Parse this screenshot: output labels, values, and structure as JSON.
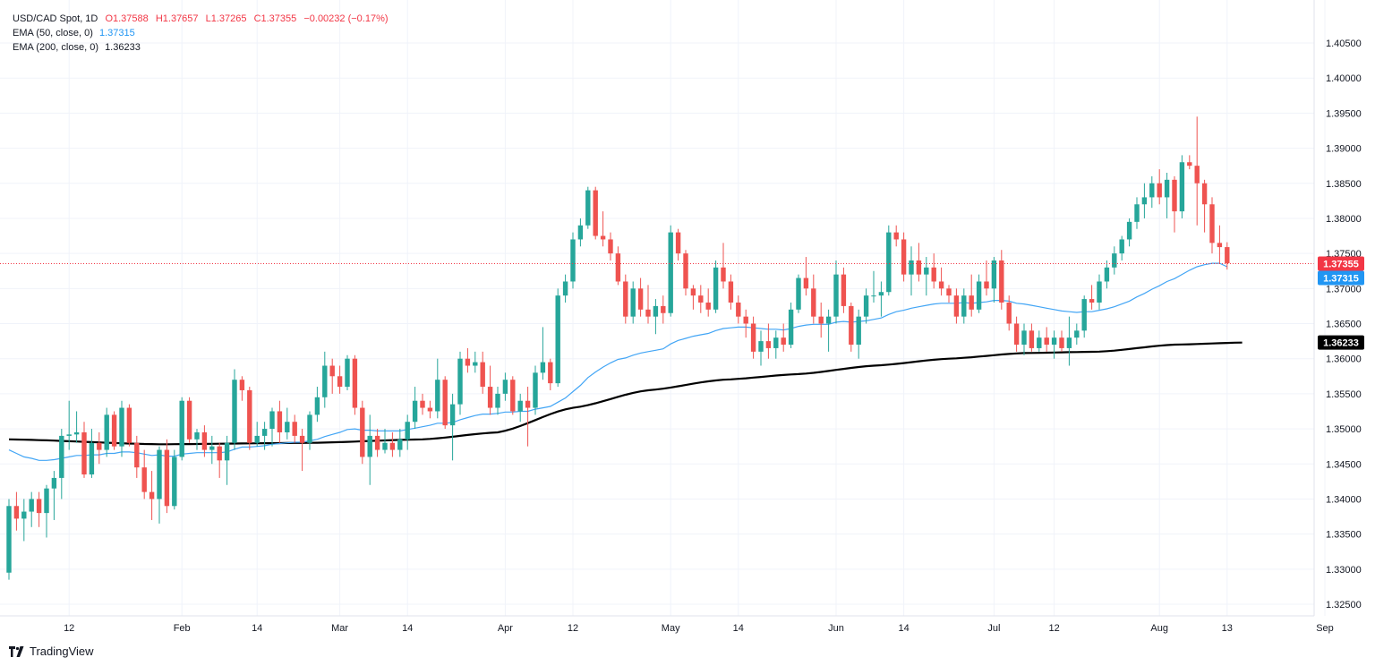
{
  "legend": {
    "symbol": "USD/CAD Spot, 1D",
    "open": "O1.37588",
    "high": "H1.37657",
    "low": "L1.37265",
    "close": "C1.37355",
    "change": "−0.00232 (−0.17%)",
    "ema50_label": "EMA (50, close, 0)",
    "ema50_value": "1.37315",
    "ema200_label": "EMA (200, close, 0)",
    "ema200_value": "1.36233"
  },
  "watermark": "TradingView",
  "colors": {
    "up": "#26a69a",
    "down": "#ef5350",
    "ema50": "#42a5f5",
    "ema200": "#000000",
    "last_price_tag": "#f23645",
    "ema50_tag": "#2196f3",
    "ema200_tag": "#000000",
    "grid": "#f0f3fa"
  },
  "chart_data": {
    "type": "candlestick",
    "title": "USD/CAD Spot, 1D",
    "x_axis": {
      "ticks": [
        {
          "label": "12",
          "day": 8
        },
        {
          "label": "Feb",
          "day": 23
        },
        {
          "label": "14",
          "day": 33
        },
        {
          "label": "Mar",
          "day": 44
        },
        {
          "label": "14",
          "day": 53
        },
        {
          "label": "Apr",
          "day": 66
        },
        {
          "label": "12",
          "day": 75
        },
        {
          "label": "May",
          "day": 88
        },
        {
          "label": "14",
          "day": 97
        },
        {
          "label": "Jun",
          "day": 110
        },
        {
          "label": "14",
          "day": 119
        },
        {
          "label": "Jul",
          "day": 131
        },
        {
          "label": "12",
          "day": 139
        },
        {
          "label": "Aug",
          "day": 153
        },
        {
          "label": "13",
          "day": 162
        },
        {
          "label": "Sep",
          "day": 175
        }
      ]
    },
    "y_axis": {
      "range": [
        1.322,
        1.409
      ],
      "ticks": [
        "1.40500",
        "1.40000",
        "1.39500",
        "1.39000",
        "1.38500",
        "1.38000",
        "1.37500",
        "1.37000",
        "1.36500",
        "1.36000",
        "1.35500",
        "1.35000",
        "1.34500",
        "1.34000",
        "1.33500",
        "1.33000",
        "1.32500"
      ]
    },
    "price_tags": {
      "last": "1.37355",
      "ema50": "1.37315",
      "ema200": "1.36233"
    },
    "last_price": 1.37355,
    "grid": true,
    "candles": [
      [
        1.3295,
        1.34,
        1.3285,
        1.339
      ],
      [
        1.339,
        1.341,
        1.3355,
        1.3372
      ],
      [
        1.3372,
        1.34,
        1.334,
        1.3382
      ],
      [
        1.3382,
        1.341,
        1.336,
        1.34
      ],
      [
        1.34,
        1.341,
        1.336,
        1.338
      ],
      [
        1.338,
        1.342,
        1.3345,
        1.3415
      ],
      [
        1.3415,
        1.344,
        1.337,
        1.343
      ],
      [
        1.343,
        1.35,
        1.34,
        1.349
      ],
      [
        1.349,
        1.354,
        1.347,
        1.3492
      ],
      [
        1.3492,
        1.3525,
        1.348,
        1.3495
      ],
      [
        1.3495,
        1.351,
        1.343,
        1.3435
      ],
      [
        1.3435,
        1.35,
        1.343,
        1.348
      ],
      [
        1.348,
        1.3495,
        1.345,
        1.347
      ],
      [
        1.347,
        1.353,
        1.346,
        1.352
      ],
      [
        1.352,
        1.3525,
        1.347,
        1.3475
      ],
      [
        1.3475,
        1.354,
        1.346,
        1.353
      ],
      [
        1.353,
        1.3535,
        1.3475,
        1.348
      ],
      [
        1.348,
        1.349,
        1.343,
        1.3445
      ],
      [
        1.3445,
        1.347,
        1.34,
        1.341
      ],
      [
        1.341,
        1.344,
        1.337,
        1.34
      ],
      [
        1.34,
        1.3475,
        1.3365,
        1.347
      ],
      [
        1.347,
        1.3485,
        1.338,
        1.339
      ],
      [
        1.339,
        1.347,
        1.3385,
        1.346
      ],
      [
        1.346,
        1.3545,
        1.3455,
        1.354
      ],
      [
        1.354,
        1.3545,
        1.348,
        1.3485
      ],
      [
        1.3485,
        1.35,
        1.347,
        1.3495
      ],
      [
        1.3495,
        1.3505,
        1.346,
        1.347
      ],
      [
        1.347,
        1.349,
        1.345,
        1.3475
      ],
      [
        1.3475,
        1.348,
        1.343,
        1.3455
      ],
      [
        1.3455,
        1.349,
        1.342,
        1.348
      ],
      [
        1.348,
        1.3585,
        1.347,
        1.357
      ],
      [
        1.357,
        1.3575,
        1.354,
        1.3555
      ],
      [
        1.3555,
        1.356,
        1.347,
        1.348
      ],
      [
        1.348,
        1.351,
        1.3475,
        1.349
      ],
      [
        1.349,
        1.351,
        1.347,
        1.35
      ],
      [
        1.35,
        1.353,
        1.3475,
        1.3525
      ],
      [
        1.3525,
        1.354,
        1.348,
        1.3495
      ],
      [
        1.3495,
        1.353,
        1.3485,
        1.351
      ],
      [
        1.351,
        1.352,
        1.348,
        1.349
      ],
      [
        1.349,
        1.35,
        1.344,
        1.348
      ],
      [
        1.348,
        1.3525,
        1.347,
        1.352
      ],
      [
        1.352,
        1.356,
        1.351,
        1.3545
      ],
      [
        1.3545,
        1.361,
        1.353,
        1.359
      ],
      [
        1.359,
        1.36,
        1.355,
        1.3575
      ],
      [
        1.3575,
        1.359,
        1.355,
        1.356
      ],
      [
        1.356,
        1.3605,
        1.3555,
        1.36
      ],
      [
        1.36,
        1.3605,
        1.352,
        1.353
      ],
      [
        1.353,
        1.354,
        1.345,
        1.346
      ],
      [
        1.346,
        1.352,
        1.342,
        1.349
      ],
      [
        1.349,
        1.35,
        1.346,
        1.347
      ],
      [
        1.347,
        1.35,
        1.3465,
        1.348
      ],
      [
        1.348,
        1.3495,
        1.346,
        1.347
      ],
      [
        1.347,
        1.35,
        1.346,
        1.3485
      ],
      [
        1.3485,
        1.352,
        1.347,
        1.351
      ],
      [
        1.351,
        1.356,
        1.35,
        1.354
      ],
      [
        1.354,
        1.355,
        1.352,
        1.353
      ],
      [
        1.353,
        1.354,
        1.3515,
        1.3525
      ],
      [
        1.3525,
        1.36,
        1.3515,
        1.357
      ],
      [
        1.357,
        1.3575,
        1.35,
        1.3505
      ],
      [
        1.3505,
        1.355,
        1.3455,
        1.3535
      ],
      [
        1.3535,
        1.361,
        1.352,
        1.36
      ],
      [
        1.36,
        1.3615,
        1.358,
        1.359
      ],
      [
        1.359,
        1.361,
        1.358,
        1.3595
      ],
      [
        1.3595,
        1.361,
        1.355,
        1.356
      ],
      [
        1.356,
        1.359,
        1.352,
        1.353
      ],
      [
        1.353,
        1.356,
        1.352,
        1.355
      ],
      [
        1.355,
        1.358,
        1.354,
        1.357
      ],
      [
        1.357,
        1.3575,
        1.352,
        1.3525
      ],
      [
        1.3525,
        1.355,
        1.351,
        1.354
      ],
      [
        1.354,
        1.356,
        1.3475,
        1.353
      ],
      [
        1.353,
        1.359,
        1.352,
        1.358
      ],
      [
        1.358,
        1.3645,
        1.357,
        1.3595
      ],
      [
        1.3595,
        1.36,
        1.3555,
        1.3565
      ],
      [
        1.3565,
        1.37,
        1.356,
        1.369
      ],
      [
        1.369,
        1.372,
        1.368,
        1.371
      ],
      [
        1.371,
        1.378,
        1.37,
        1.377
      ],
      [
        1.377,
        1.38,
        1.376,
        1.379
      ],
      [
        1.379,
        1.3845,
        1.3785,
        1.384
      ],
      [
        1.384,
        1.3845,
        1.377,
        1.3775
      ],
      [
        1.3775,
        1.381,
        1.376,
        1.377
      ],
      [
        1.377,
        1.378,
        1.374,
        1.375
      ],
      [
        1.375,
        1.376,
        1.3705,
        1.371
      ],
      [
        1.371,
        1.372,
        1.365,
        1.366
      ],
      [
        1.366,
        1.371,
        1.365,
        1.37
      ],
      [
        1.37,
        1.3715,
        1.366,
        1.367
      ],
      [
        1.367,
        1.3705,
        1.365,
        1.366
      ],
      [
        1.366,
        1.3685,
        1.3635,
        1.3675
      ],
      [
        1.3675,
        1.369,
        1.365,
        1.3665
      ],
      [
        1.3665,
        1.379,
        1.366,
        1.378
      ],
      [
        1.378,
        1.3785,
        1.374,
        1.375
      ],
      [
        1.375,
        1.3755,
        1.369,
        1.37
      ],
      [
        1.37,
        1.3705,
        1.367,
        1.369
      ],
      [
        1.369,
        1.3705,
        1.3665,
        1.368
      ],
      [
        1.368,
        1.37,
        1.366,
        1.367
      ],
      [
        1.367,
        1.374,
        1.3665,
        1.373
      ],
      [
        1.373,
        1.3765,
        1.37,
        1.371
      ],
      [
        1.371,
        1.372,
        1.367,
        1.368
      ],
      [
        1.368,
        1.369,
        1.365,
        1.366
      ],
      [
        1.366,
        1.367,
        1.363,
        1.365
      ],
      [
        1.365,
        1.366,
        1.36,
        1.361
      ],
      [
        1.361,
        1.364,
        1.359,
        1.3625
      ],
      [
        1.3625,
        1.365,
        1.36,
        1.3615
      ],
      [
        1.3615,
        1.364,
        1.36,
        1.363
      ],
      [
        1.363,
        1.365,
        1.361,
        1.362
      ],
      [
        1.362,
        1.368,
        1.3615,
        1.367
      ],
      [
        1.367,
        1.372,
        1.3665,
        1.3715
      ],
      [
        1.3715,
        1.3745,
        1.369,
        1.37
      ],
      [
        1.37,
        1.372,
        1.365,
        1.366
      ],
      [
        1.366,
        1.368,
        1.363,
        1.365
      ],
      [
        1.365,
        1.367,
        1.361,
        1.366
      ],
      [
        1.366,
        1.374,
        1.365,
        1.372
      ],
      [
        1.372,
        1.373,
        1.3665,
        1.3675
      ],
      [
        1.3675,
        1.368,
        1.361,
        1.362
      ],
      [
        1.362,
        1.367,
        1.36,
        1.366
      ],
      [
        1.366,
        1.37,
        1.365,
        1.369
      ],
      [
        1.369,
        1.3725,
        1.368,
        1.369
      ],
      [
        1.369,
        1.371,
        1.366,
        1.3695
      ],
      [
        1.3695,
        1.379,
        1.369,
        1.378
      ],
      [
        1.378,
        1.379,
        1.376,
        1.377
      ],
      [
        1.377,
        1.378,
        1.371,
        1.372
      ],
      [
        1.372,
        1.376,
        1.369,
        1.374
      ],
      [
        1.374,
        1.3765,
        1.371,
        1.372
      ],
      [
        1.372,
        1.3745,
        1.369,
        1.373
      ],
      [
        1.373,
        1.375,
        1.37,
        1.371
      ],
      [
        1.371,
        1.373,
        1.369,
        1.37
      ],
      [
        1.37,
        1.3705,
        1.368,
        1.369
      ],
      [
        1.369,
        1.37,
        1.365,
        1.366
      ],
      [
        1.366,
        1.37,
        1.365,
        1.369
      ],
      [
        1.369,
        1.372,
        1.366,
        1.367
      ],
      [
        1.367,
        1.372,
        1.3665,
        1.371
      ],
      [
        1.371,
        1.374,
        1.369,
        1.37
      ],
      [
        1.37,
        1.3745,
        1.368,
        1.374
      ],
      [
        1.374,
        1.3755,
        1.367,
        1.368
      ],
      [
        1.368,
        1.369,
        1.364,
        1.365
      ],
      [
        1.365,
        1.366,
        1.361,
        1.362
      ],
      [
        1.362,
        1.365,
        1.3605,
        1.364
      ],
      [
        1.364,
        1.365,
        1.361,
        1.3615
      ],
      [
        1.3615,
        1.364,
        1.361,
        1.363
      ],
      [
        1.363,
        1.3645,
        1.361,
        1.362
      ],
      [
        1.362,
        1.364,
        1.36,
        1.363
      ],
      [
        1.363,
        1.364,
        1.361,
        1.3615
      ],
      [
        1.3615,
        1.366,
        1.359,
        1.363
      ],
      [
        1.363,
        1.365,
        1.362,
        1.364
      ],
      [
        1.364,
        1.369,
        1.363,
        1.3685
      ],
      [
        1.3685,
        1.3705,
        1.367,
        1.368
      ],
      [
        1.368,
        1.372,
        1.367,
        1.371
      ],
      [
        1.371,
        1.374,
        1.37,
        1.373
      ],
      [
        1.373,
        1.376,
        1.372,
        1.375
      ],
      [
        1.375,
        1.3775,
        1.374,
        1.377
      ],
      [
        1.377,
        1.38,
        1.376,
        1.3795
      ],
      [
        1.3795,
        1.383,
        1.3785,
        1.382
      ],
      [
        1.382,
        1.385,
        1.38,
        1.383
      ],
      [
        1.383,
        1.386,
        1.3815,
        1.385
      ],
      [
        1.385,
        1.387,
        1.382,
        1.383
      ],
      [
        1.383,
        1.3865,
        1.38,
        1.3855
      ],
      [
        1.3855,
        1.386,
        1.378,
        1.381
      ],
      [
        1.381,
        1.389,
        1.38,
        1.388
      ],
      [
        1.388,
        1.389,
        1.387,
        1.3875
      ],
      [
        1.3875,
        1.3945,
        1.379,
        1.385
      ],
      [
        1.385,
        1.3855,
        1.378,
        1.382
      ],
      [
        1.382,
        1.383,
        1.375,
        1.3765
      ],
      [
        1.3765,
        1.379,
        1.3735,
        1.3759
      ],
      [
        1.3759,
        1.3766,
        1.3727,
        1.3736
      ]
    ],
    "ema50": [
      1.347,
      1.3465,
      1.346,
      1.3458,
      1.3455,
      1.3455,
      1.3456,
      1.3458,
      1.346,
      1.3462,
      1.3462,
      1.3463,
      1.3463,
      1.3465,
      1.3465,
      1.3467,
      1.3467,
      1.3466,
      1.3464,
      1.3462,
      1.3463,
      1.3461,
      1.3461,
      1.3464,
      1.3465,
      1.3466,
      1.3466,
      1.3466,
      1.3466,
      1.3467,
      1.3471,
      1.3474,
      1.3474,
      1.3475,
      1.3476,
      1.3478,
      1.3479,
      1.348,
      1.3481,
      1.3481,
      1.3483,
      1.3485,
      1.3489,
      1.3492,
      1.3495,
      1.3499,
      1.35,
      1.3498,
      1.3498,
      1.3497,
      1.3497,
      1.3497,
      1.3497,
      1.3499,
      1.3501,
      1.3503,
      1.3505,
      1.3508,
      1.3508,
      1.3509,
      1.3513,
      1.3516,
      1.3519,
      1.3521,
      1.3521,
      1.3522,
      1.3524,
      1.3524,
      1.3525,
      1.3525,
      1.3528,
      1.353,
      1.3532,
      1.3538,
      1.3544,
      1.3553,
      1.3562,
      1.3573,
      1.3581,
      1.3588,
      1.3594,
      1.3599,
      1.3601,
      1.3605,
      1.3608,
      1.361,
      1.3612,
      1.3614,
      1.3621,
      1.3626,
      1.3629,
      1.3632,
      1.3634,
      1.3636,
      1.364,
      1.3643,
      1.3644,
      1.3645,
      1.3645,
      1.3644,
      1.3643,
      1.3642,
      1.3642,
      1.3641,
      1.3643,
      1.3646,
      1.3648,
      1.3649,
      1.3649,
      1.3649,
      1.3652,
      1.3653,
      1.3652,
      1.3653,
      1.3654,
      1.3656,
      1.3658,
      1.3663,
      1.3667,
      1.3669,
      1.3672,
      1.3674,
      1.3676,
      1.3678,
      1.3679,
      1.3679,
      1.3679,
      1.368,
      1.3679,
      1.368,
      1.3681,
      1.3683,
      1.3683,
      1.3682,
      1.3679,
      1.3678,
      1.3676,
      1.3674,
      1.3672,
      1.367,
      1.3668,
      1.3667,
      1.3666,
      1.3667,
      1.3667,
      1.3669,
      1.3671,
      1.3674,
      1.3678,
      1.3682,
      1.3688,
      1.3693,
      1.3699,
      1.3704,
      1.371,
      1.3714,
      1.372,
      1.3726,
      1.3731,
      1.3734,
      1.3736,
      1.3736,
      1.3731
    ]
  }
}
